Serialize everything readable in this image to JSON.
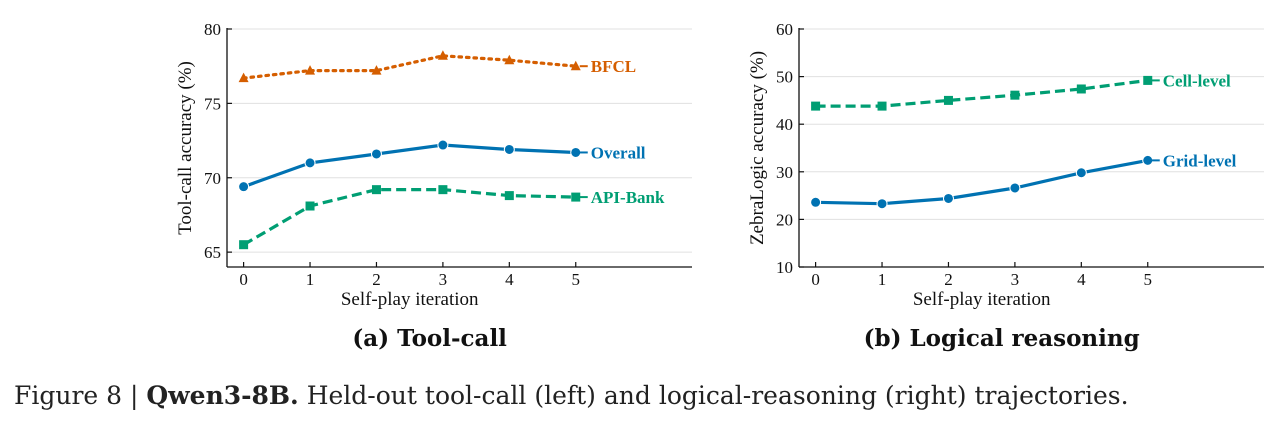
{
  "caption": {
    "figure": "Figure 8 | ",
    "model": "Qwen3-8B.",
    "text": " Held-out tool-call (left) and logical-reasoning (right) trajectories."
  },
  "colors": {
    "orange": "#d55e00",
    "blue": "#0072b2",
    "green": "#009e73",
    "grid": "#e0e0e0"
  },
  "chart_data": [
    {
      "type": "line",
      "subtitle": "(a) Tool-call",
      "xlabel": "Self-play iteration",
      "ylabel": "Tool-call accuracy (%)",
      "x": [
        0,
        1,
        2,
        3,
        4,
        5
      ],
      "xlim": [
        -0.25,
        6.75
      ],
      "ylim": [
        64.0,
        80.0
      ],
      "yticks": [
        65,
        70,
        75,
        80
      ],
      "grid": true,
      "series": [
        {
          "name": "BFCL",
          "values": [
            76.7,
            77.2,
            77.2,
            78.2,
            77.9,
            77.5
          ],
          "color": "#d55e00",
          "style": "dotted",
          "marker": "triangle"
        },
        {
          "name": "Overall",
          "values": [
            69.4,
            71.0,
            71.6,
            72.2,
            71.9,
            71.7
          ],
          "color": "#0072b2",
          "style": "solid",
          "marker": "circle"
        },
        {
          "name": "API-Bank",
          "values": [
            65.5,
            68.1,
            69.2,
            69.2,
            68.8,
            68.7
          ],
          "color": "#009e73",
          "style": "dashed",
          "marker": "square"
        }
      ]
    },
    {
      "type": "line",
      "subtitle": "(b) Logical reasoning",
      "xlabel": "Self-play iteration",
      "ylabel": "ZebraLogic accuracy (%)",
      "x": [
        0,
        1,
        2,
        3,
        4,
        5
      ],
      "xlim": [
        -0.25,
        6.75
      ],
      "ylim": [
        10,
        60
      ],
      "yticks": [
        10,
        20,
        30,
        40,
        50,
        60
      ],
      "grid": true,
      "series": [
        {
          "name": "Cell-level",
          "values": [
            43.8,
            43.8,
            45.0,
            46.1,
            47.4,
            49.2
          ],
          "color": "#009e73",
          "style": "dashed",
          "marker": "square"
        },
        {
          "name": "Grid-level",
          "values": [
            23.6,
            23.3,
            24.4,
            26.6,
            29.8,
            32.4
          ],
          "color": "#0072b2",
          "style": "solid",
          "marker": "circle"
        }
      ]
    }
  ]
}
